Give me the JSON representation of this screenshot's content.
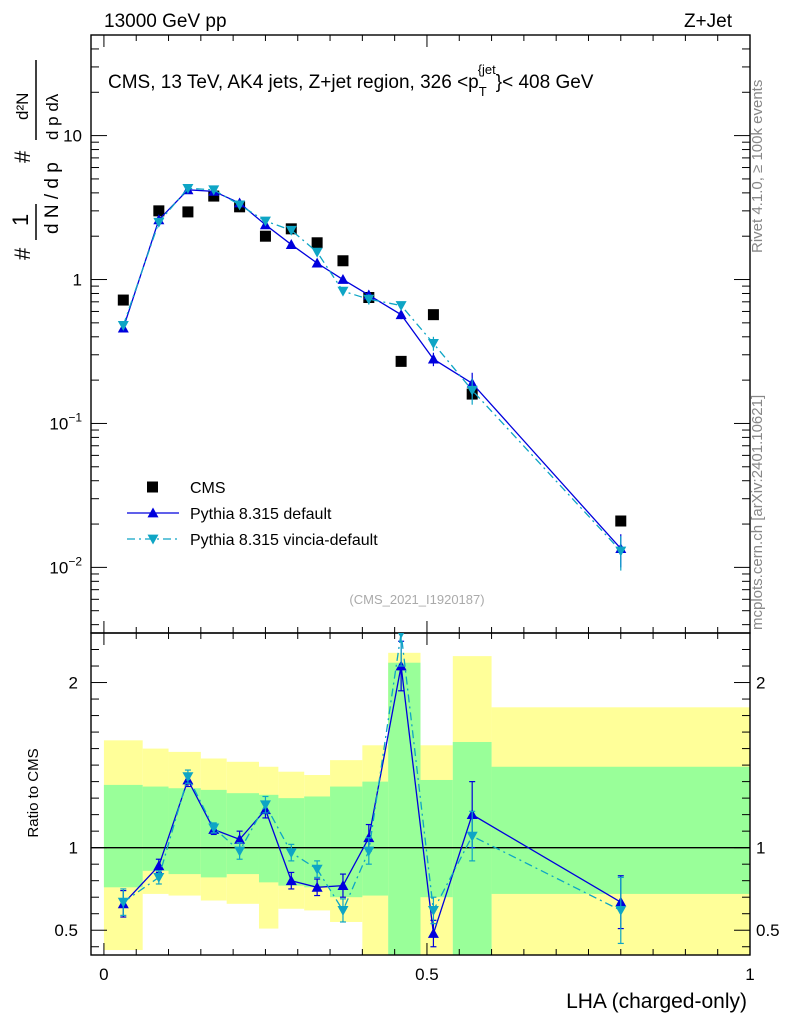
{
  "header": {
    "energy_label": "13000 GeV pp",
    "process_label": "Z+Jet"
  },
  "side_labels": {
    "rivet": "Rivet 4.1.0, ≥ 100k events",
    "source": "mcplots.cern.ch [arXiv:2401.10621]"
  },
  "chart_data": {
    "type": "line",
    "title": "CMS, 13 TeV, AK4 jets, Z+jet region, 326 <p_T^{jet}< 408 GeV",
    "title_parts": {
      "main": "CMS, 13 TeV, AK4 jets, Z+jet region, 326 <p",
      "sub": "T",
      "sup": "{jet",
      "close": "}< 408 GeV"
    },
    "analysis_id": "(CMS_2021_I1920187)",
    "xlabel": "LHA (charged-only)",
    "ylabel_main": "1/N dN/dp_T dλ",
    "ylabel_ratio": "Ratio to CMS",
    "xlim": [
      -0.02,
      1.0
    ],
    "ylim_main": [
      0.0035,
      50
    ],
    "ylim_ratio": [
      0.35,
      2.3
    ],
    "x_ticks": [
      {
        "value": 0,
        "label": "0"
      },
      {
        "value": 0.5,
        "label": "0.5"
      },
      {
        "value": 1,
        "label": "1"
      }
    ],
    "y_ticks_main": [
      {
        "value": 0.01,
        "base": "10",
        "exp": "−2"
      },
      {
        "value": 0.1,
        "base": "10",
        "exp": "−1"
      },
      {
        "value": 1,
        "base": "1",
        "exp": ""
      },
      {
        "value": 10,
        "base": "10",
        "exp": ""
      }
    ],
    "y_ticks_ratio": [
      {
        "value": 0.5,
        "label": "0.5"
      },
      {
        "value": 1,
        "label": "1"
      },
      {
        "value": 2,
        "label": "2"
      }
    ],
    "bin_edges": [
      0,
      0.06,
      0.1,
      0.15,
      0.19,
      0.24,
      0.27,
      0.31,
      0.35,
      0.4,
      0.44,
      0.49,
      0.54,
      0.6,
      1.0
    ],
    "ratio_band_green": [
      [
        0.76,
        1.38
      ],
      [
        0.86,
        1.37
      ],
      [
        0.84,
        1.36
      ],
      [
        0.82,
        1.35
      ],
      [
        0.84,
        1.33
      ],
      [
        0.79,
        1.32
      ],
      [
        0.77,
        1.3
      ],
      [
        0.76,
        1.31
      ],
      [
        0.7,
        1.37
      ],
      [
        0.71,
        1.4
      ],
      [
        0.3,
        2.12
      ],
      [
        0.7,
        1.41
      ],
      [
        0.31,
        1.64
      ],
      [
        0.72,
        1.49
      ]
    ],
    "ratio_band_yellow": [
      [
        0.38,
        1.65
      ],
      [
        0.72,
        1.6
      ],
      [
        0.71,
        1.58
      ],
      [
        0.68,
        1.54
      ],
      [
        0.66,
        1.52
      ],
      [
        0.51,
        1.49
      ],
      [
        0.63,
        1.46
      ],
      [
        0.62,
        1.44
      ],
      [
        0.55,
        1.53
      ],
      [
        0.3,
        1.62
      ],
      [
        0.3,
        2.18
      ],
      [
        0.3,
        1.62
      ],
      [
        0.3,
        2.16
      ],
      [
        0.3,
        1.85
      ]
    ],
    "series": [
      {
        "name": "CMS",
        "style": "markers",
        "color": "#000000",
        "x": [
          0.03,
          0.085,
          0.13,
          0.17,
          0.21,
          0.25,
          0.29,
          0.33,
          0.37,
          0.41,
          0.46,
          0.51,
          0.57,
          0.8
        ],
        "y": [
          0.72,
          3.0,
          2.95,
          3.8,
          3.2,
          2.0,
          2.25,
          1.8,
          1.35,
          0.75,
          0.27,
          0.57,
          0.16,
          0.021
        ]
      },
      {
        "name": "Pythia 8.315 default",
        "style": "solid",
        "color": "#0000dd",
        "x": [
          0.03,
          0.085,
          0.13,
          0.17,
          0.21,
          0.25,
          0.29,
          0.33,
          0.37,
          0.41,
          0.46,
          0.51,
          0.57,
          0.8
        ],
        "y": [
          0.46,
          2.6,
          4.2,
          4.1,
          3.4,
          2.4,
          1.75,
          1.3,
          1.0,
          0.78,
          0.57,
          0.28,
          0.19,
          0.0135
        ],
        "yerr": [
          0.03,
          0.1,
          0.12,
          0.12,
          0.1,
          0.08,
          0.06,
          0.05,
          0.05,
          0.06,
          0.04,
          0.03,
          0.035,
          0.0035
        ],
        "ratio": [
          0.66,
          0.89,
          1.41,
          1.11,
          1.05,
          1.23,
          0.8,
          0.76,
          0.77,
          1.06,
          2.1,
          0.48,
          1.2,
          0.67
        ],
        "ratio_err": [
          0.08,
          0.04,
          0.04,
          0.03,
          0.05,
          0.05,
          0.05,
          0.05,
          0.07,
          0.08,
          0.15,
          0.08,
          0.2,
          0.16
        ]
      },
      {
        "name": "Pythia 8.315 vincia-default",
        "style": "dashdot",
        "color": "#0ea5c5",
        "x": [
          0.03,
          0.085,
          0.13,
          0.17,
          0.21,
          0.25,
          0.29,
          0.33,
          0.37,
          0.41,
          0.46,
          0.51,
          0.57,
          0.8
        ],
        "y": [
          0.48,
          2.5,
          4.3,
          4.2,
          3.3,
          2.55,
          2.2,
          1.55,
          0.83,
          0.73,
          0.66,
          0.36,
          0.17,
          0.013
        ],
        "yerr": [
          0.03,
          0.1,
          0.12,
          0.12,
          0.1,
          0.08,
          0.06,
          0.05,
          0.05,
          0.06,
          0.04,
          0.04,
          0.035,
          0.0035
        ],
        "ratio": [
          0.67,
          0.82,
          1.43,
          1.12,
          0.98,
          1.26,
          0.97,
          0.87,
          0.62,
          0.98,
          2.3,
          0.62,
          1.07,
          0.62
        ],
        "ratio_err": [
          0.08,
          0.04,
          0.04,
          0.03,
          0.05,
          0.05,
          0.05,
          0.05,
          0.07,
          0.08,
          0.2,
          0.08,
          0.15,
          0.2
        ]
      }
    ],
    "legend": {
      "placement": "lower-left",
      "entries": [
        "CMS",
        "Pythia 8.315 default",
        "Pythia 8.315 vincia-default"
      ]
    },
    "reference_line_ratio": 1
  }
}
